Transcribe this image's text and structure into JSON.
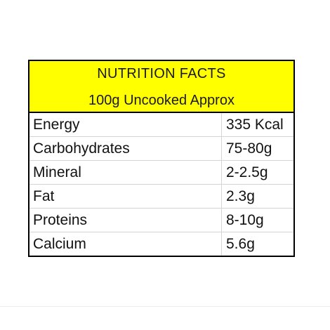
{
  "header": {
    "title": "NUTRITION FACTS",
    "subtitle": "100g Uncooked Approx"
  },
  "rows": [
    {
      "name": "Energy",
      "value": "335 Kcal"
    },
    {
      "name": "Carbohydrates",
      "value": "75-80g"
    },
    {
      "name": "Mineral",
      "value": "2-2.5g"
    },
    {
      "name": "Fat",
      "value": "2.3g"
    },
    {
      "name": "Proteins",
      "value": "8-10g"
    },
    {
      "name": "Calcium",
      "value": "5.6g"
    }
  ],
  "colors": {
    "header_background": "#ffff00",
    "border": "#000000"
  }
}
